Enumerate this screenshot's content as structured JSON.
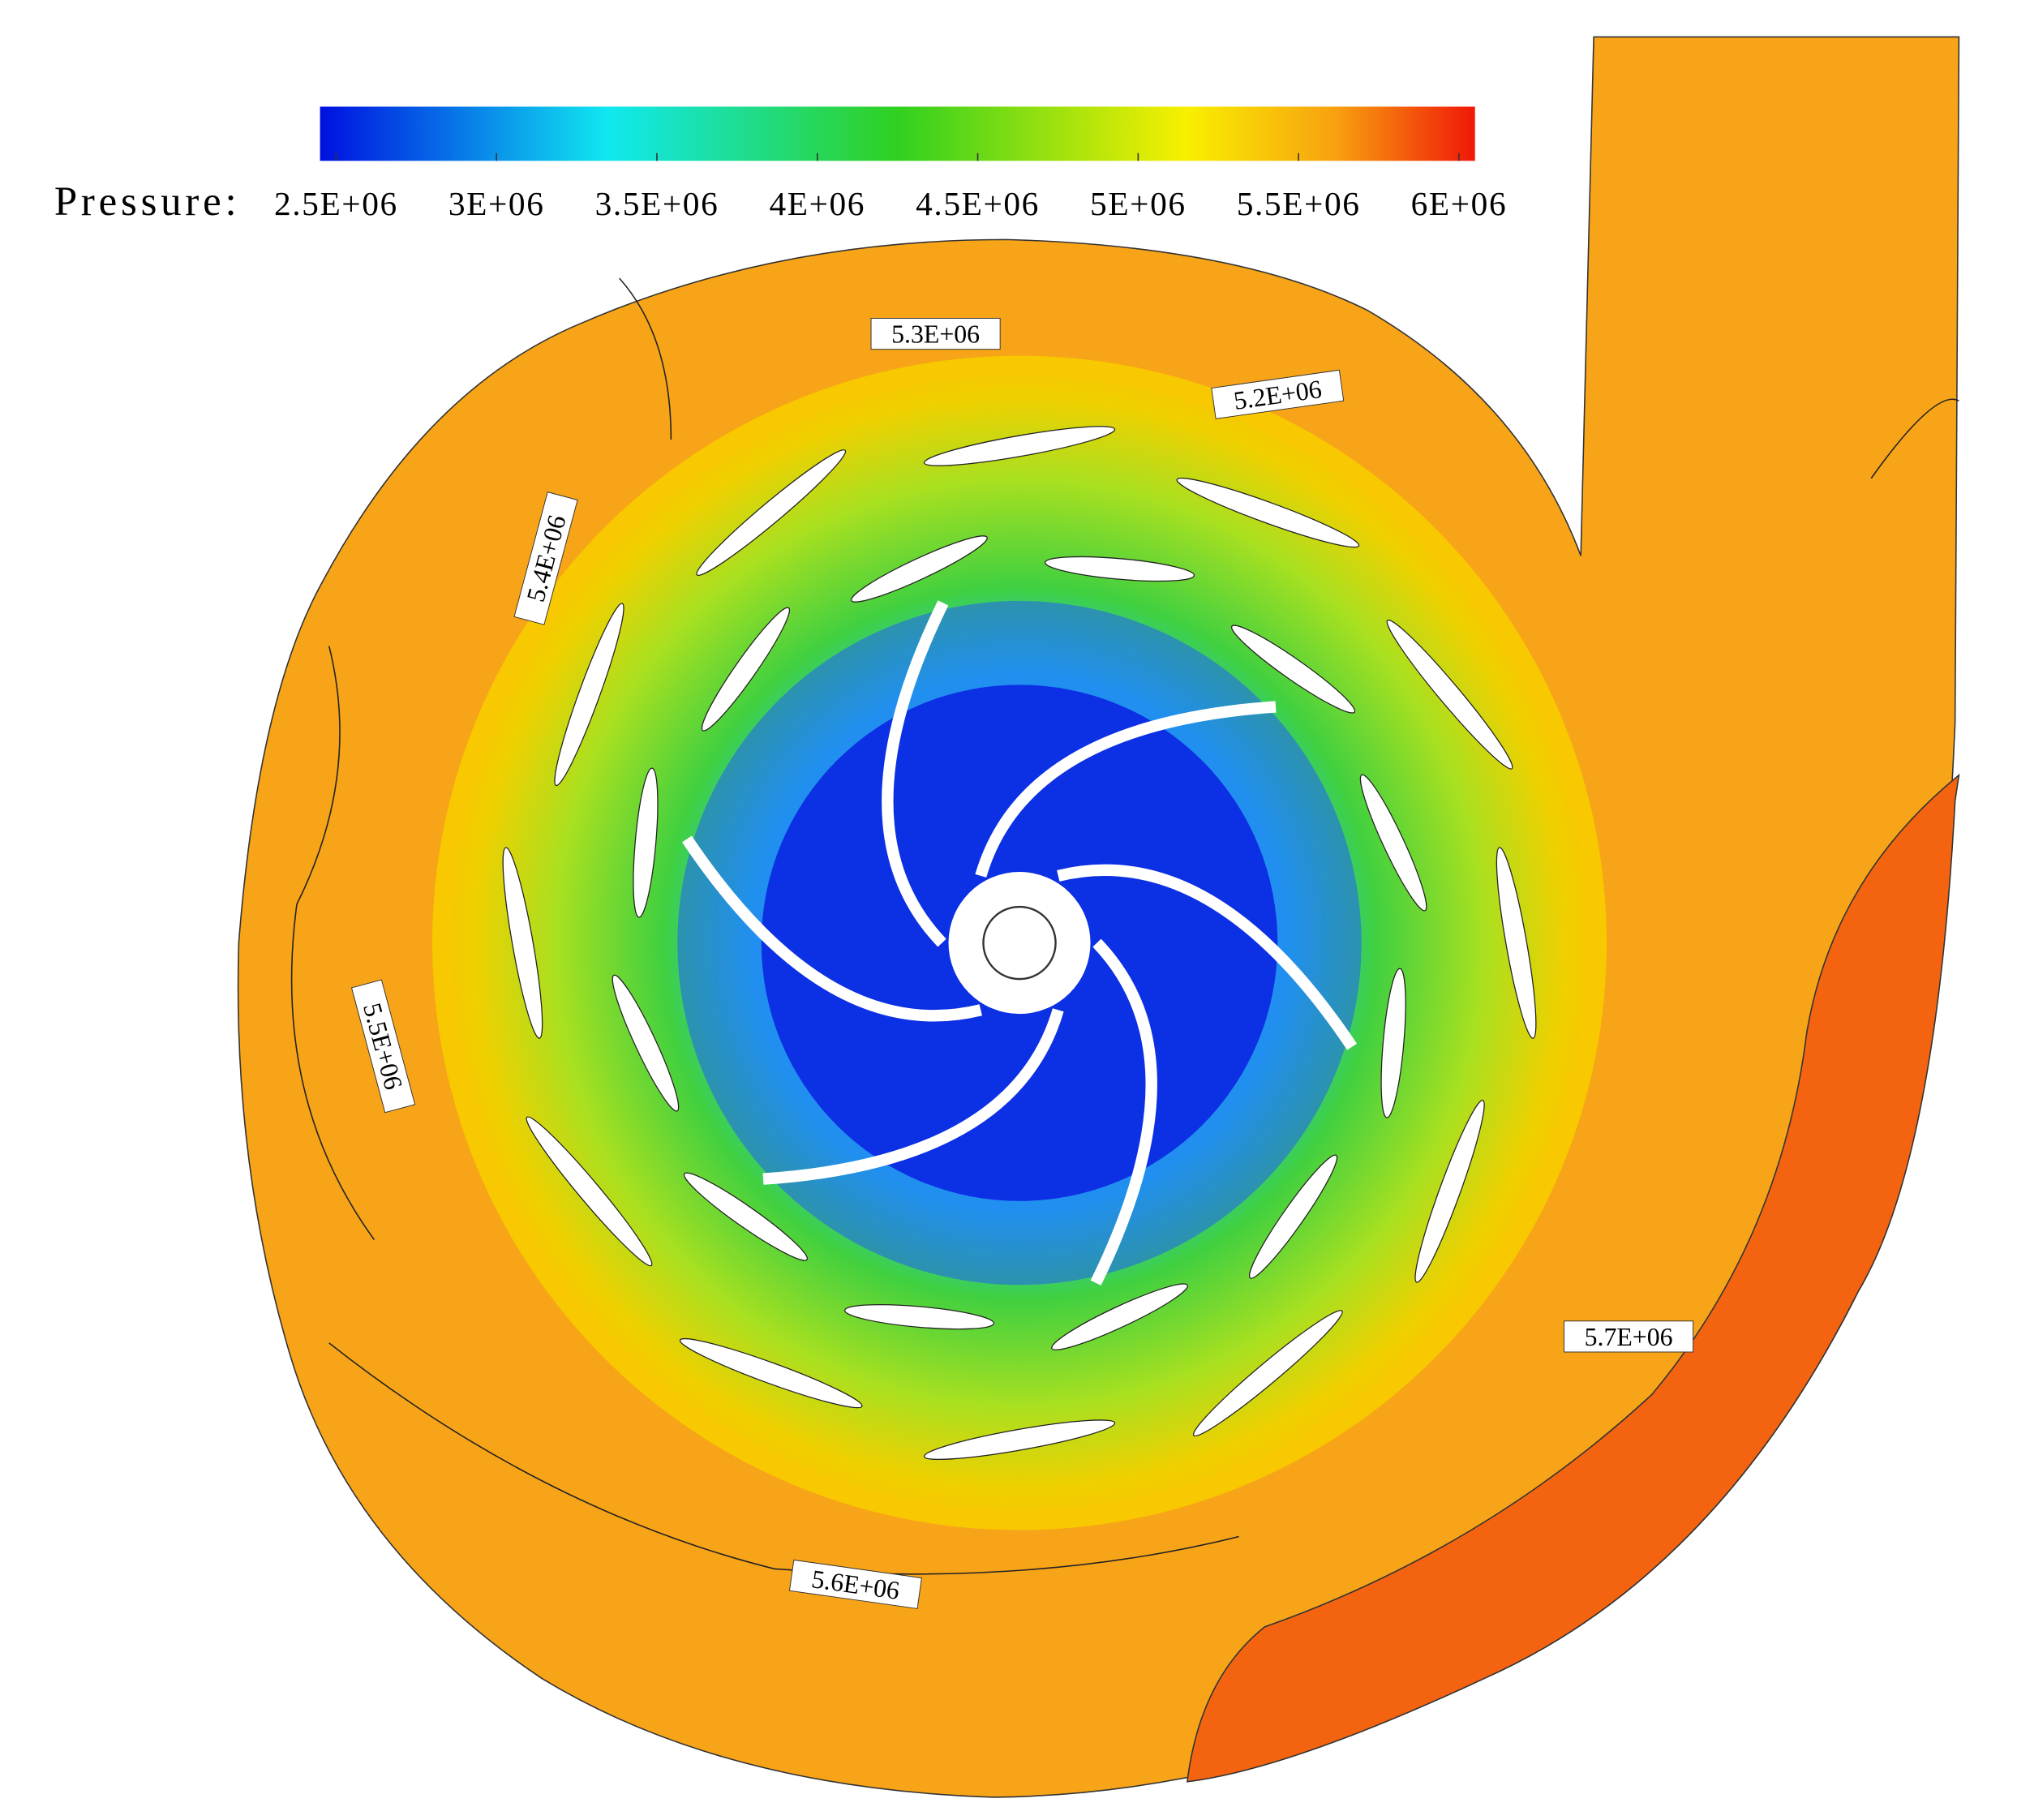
{
  "colorbar": {
    "title": "Pressure:",
    "range": [
      2450000,
      6050000
    ],
    "ticks": [
      {
        "value": 2500000,
        "label": "2.5E+06"
      },
      {
        "value": 3000000,
        "label": "3E+06"
      },
      {
        "value": 3500000,
        "label": "3.5E+06"
      },
      {
        "value": 4000000,
        "label": "4E+06"
      },
      {
        "value": 4500000,
        "label": "4.5E+06"
      },
      {
        "value": 5000000,
        "label": "5E+06"
      },
      {
        "value": 5500000,
        "label": "5.5E+06"
      },
      {
        "value": 6000000,
        "label": "6E+06"
      }
    ]
  },
  "contour_labels": [
    "5.3E+06",
    "5.2E+06",
    "5.4E+06",
    "5.5E+06",
    "5.6E+06",
    "5.7E+06"
  ]
}
